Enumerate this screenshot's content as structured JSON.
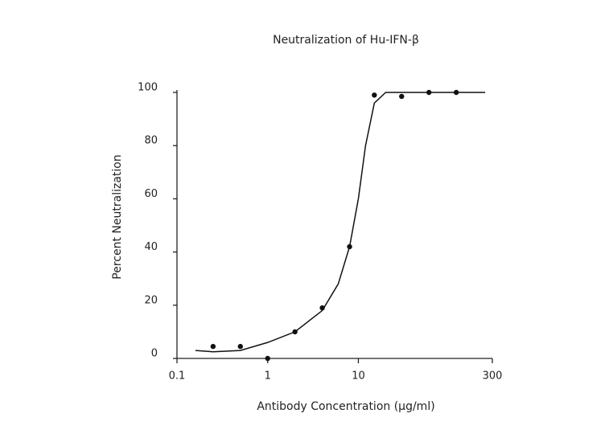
{
  "chart_data": {
    "type": "scatter",
    "title": "Neutralization of Hu-IFN-β",
    "x_label": "Antibody Concentration (μg/ml)",
    "y_label": "Percent Neutralization",
    "xscale": "log",
    "xlim": [
      0.1,
      300
    ],
    "xticks": [
      0.1,
      1,
      10,
      300
    ],
    "ylim": [
      0,
      100
    ],
    "yticks": [
      0,
      20,
      40,
      60,
      80,
      100
    ],
    "grid": false,
    "series": [
      {
        "mode": "markers",
        "color": "#111111",
        "x": [
          0.25,
          0.5,
          1,
          2,
          4,
          8,
          15,
          30,
          60,
          120
        ],
        "values": [
          4.5,
          4.5,
          0,
          10,
          19,
          42,
          99,
          98.5,
          100,
          100
        ]
      },
      {
        "mode": "line",
        "color": "#111111",
        "x": [
          0.16,
          0.25,
          0.5,
          1,
          2,
          4,
          6,
          8,
          10,
          12,
          15,
          20,
          30,
          250
        ],
        "values": [
          3,
          2.5,
          3,
          6,
          10,
          18,
          28,
          42,
          60,
          80,
          96,
          100,
          100,
          100
        ]
      }
    ]
  }
}
